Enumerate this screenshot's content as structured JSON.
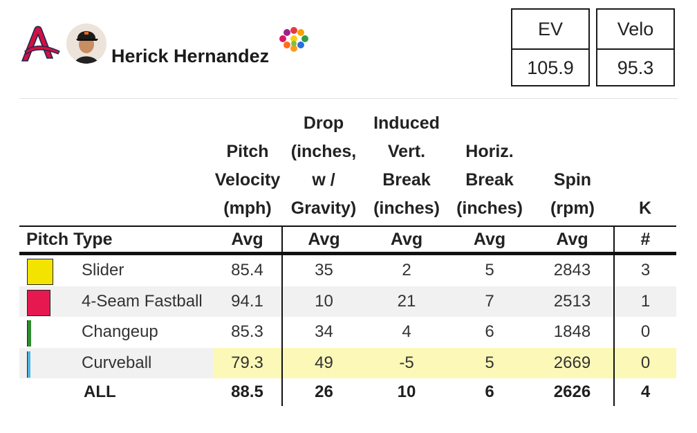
{
  "player": {
    "name": "Herick Hernandez",
    "team_logo": "atlanta-braves-logo-icon"
  },
  "summary": [
    {
      "label": "EV",
      "value": "105.9"
    },
    {
      "label": "Velo",
      "value": "95.3"
    }
  ],
  "chart_data": {
    "type": "table",
    "column_headers": [
      "Pitch Velocity (mph)",
      "Drop (inches, w / Gravity)",
      "Induced Vert. Break (inches)",
      "Horiz. Break (inches)",
      "Spin (rpm)",
      "K"
    ],
    "subheaders": [
      "Pitch Type",
      "Avg",
      "Avg",
      "Avg",
      "Avg",
      "Avg",
      "#"
    ],
    "rows": [
      {
        "pitch": "Slider",
        "color": "#f2e400",
        "velocity": "85.4",
        "drop": "35",
        "ivb": "2",
        "hb": "5",
        "spin": "2843",
        "k": "3",
        "highlight": false
      },
      {
        "pitch": "4-Seam Fastball",
        "color": "#e5194f",
        "velocity": "94.1",
        "drop": "10",
        "ivb": "21",
        "hb": "7",
        "spin": "2513",
        "k": "1",
        "highlight": false
      },
      {
        "pitch": "Changeup",
        "color": "#2e8b2e",
        "velocity": "85.3",
        "drop": "34",
        "ivb": "4",
        "hb": "6",
        "spin": "1848",
        "k": "0",
        "highlight": false
      },
      {
        "pitch": "Curveball",
        "color": "#4fb3e0",
        "velocity": "79.3",
        "drop": "49",
        "ivb": "-5",
        "hb": "5",
        "spin": "2669",
        "k": "0",
        "highlight": true
      }
    ],
    "total": {
      "pitch": "ALL",
      "velocity": "88.5",
      "drop": "26",
      "ivb": "10",
      "hb": "6",
      "spin": "2626",
      "k": "4"
    },
    "highlight_color": "#fbf8b8"
  }
}
